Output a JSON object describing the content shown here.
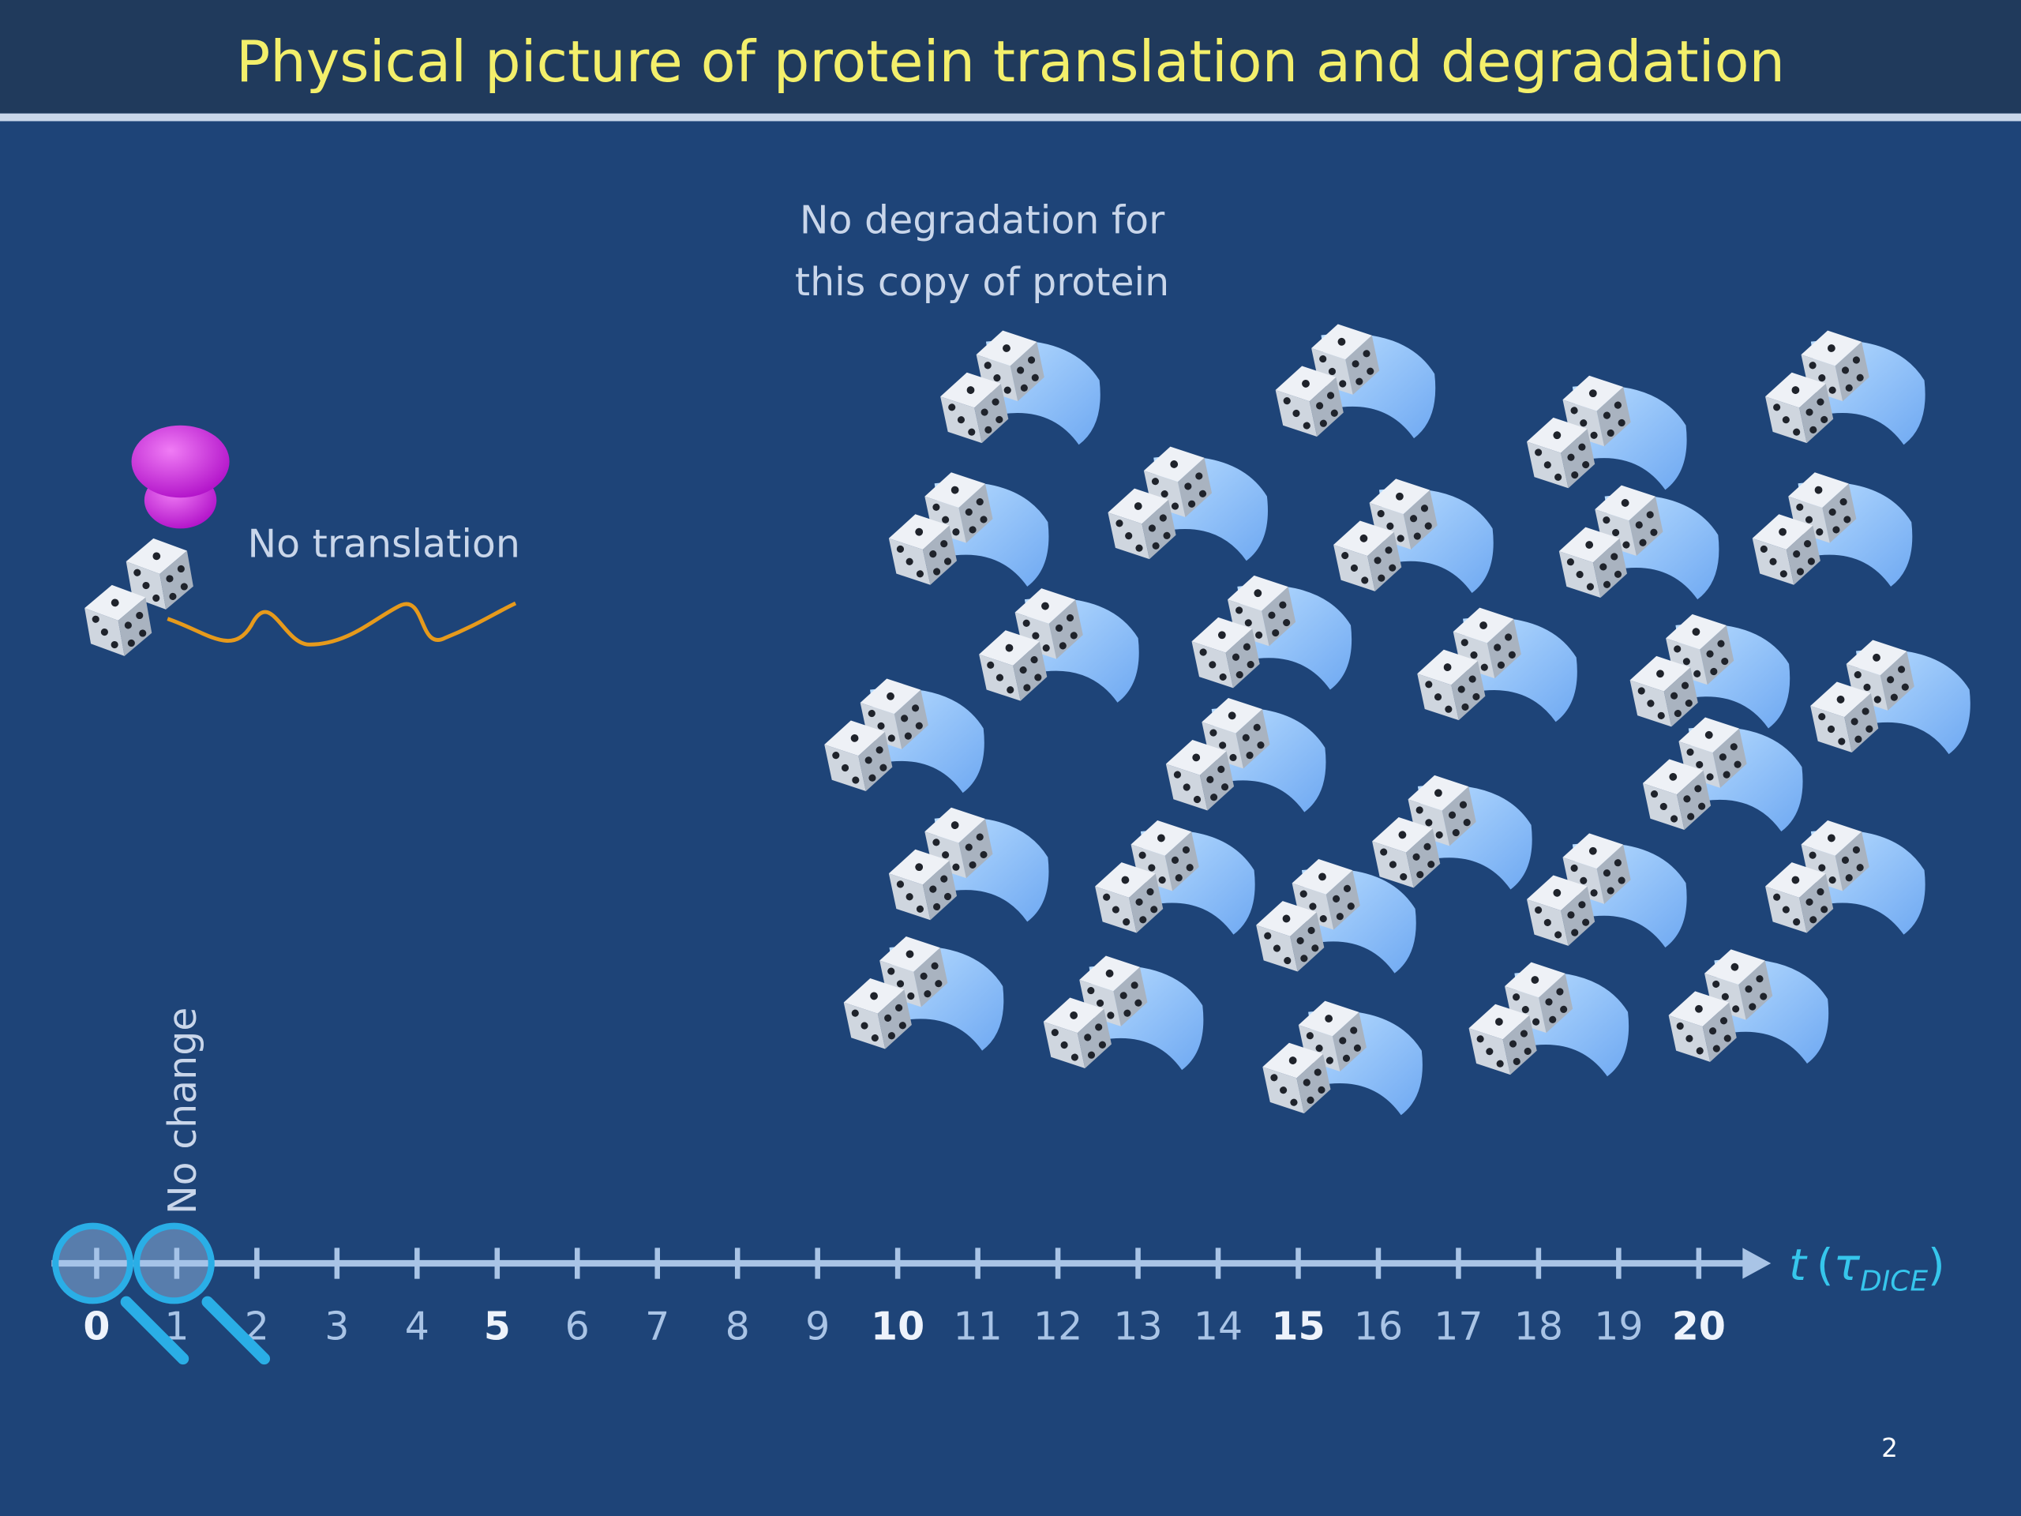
{
  "header": {
    "title": "Physical picture of protein translation and degradation"
  },
  "annotations": {
    "degradation": [
      "No degradation for",
      "this copy of protein"
    ],
    "translation": "No translation",
    "change": "No change"
  },
  "timeline": {
    "ticks": [
      0,
      1,
      2,
      3,
      4,
      5,
      6,
      7,
      8,
      9,
      10,
      11,
      12,
      13,
      14,
      15,
      16,
      17,
      18,
      19,
      20
    ],
    "major_every": 5,
    "label": {
      "variable": "t",
      "open": "(",
      "unit": "τ",
      "subscript": "DICE",
      "close": ")"
    }
  },
  "page_number": "2"
}
